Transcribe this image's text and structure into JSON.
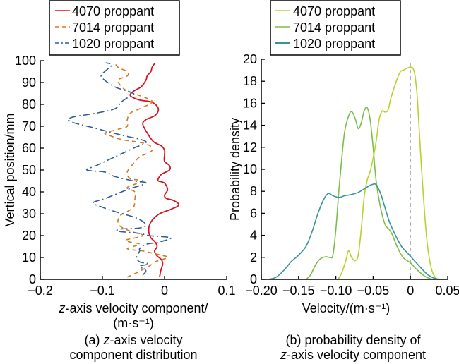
{
  "chart_data": [
    {
      "type": "line",
      "id": "left",
      "title": "",
      "caption": {
        "line1_prefix": "(a) ",
        "line1_italic": "z",
        "line1_rest": "-axis velocity",
        "line2": "component distribution"
      },
      "xlabel": {
        "line1_italic": "z",
        "line1_rest": "-axis velocity component/",
        "line2": "(m·s⁻¹)"
      },
      "ylabel": "Vertical position/mm",
      "xlim": [
        -0.2,
        0.1
      ],
      "ylim": [
        0,
        100
      ],
      "xticks": [
        -0.2,
        -0.1,
        0,
        0.1
      ],
      "xtick_labels": [
        "−0.2",
        "−0.1",
        "0",
        "0.1"
      ],
      "yticks": [
        0,
        10,
        20,
        30,
        40,
        50,
        60,
        70,
        80,
        90,
        100
      ],
      "ytick_labels": [
        "0",
        "10",
        "20",
        "30",
        "40",
        "50",
        "60",
        "70",
        "80",
        "90",
        "100"
      ],
      "grid": false,
      "legend": "top",
      "series": [
        {
          "name": "4070 proppant",
          "color": "#d7141e",
          "dash": "solid",
          "points": [
            [
              -0.008,
              1
            ],
            [
              -0.006,
              4
            ],
            [
              -0.003,
              7
            ],
            [
              -0.005,
              9
            ],
            [
              -0.013,
              11
            ],
            [
              -0.016,
              13
            ],
            [
              -0.012,
              15
            ],
            [
              -0.015,
              17
            ],
            [
              -0.022,
              19
            ],
            [
              -0.025,
              21
            ],
            [
              -0.025,
              24
            ],
            [
              -0.02,
              27
            ],
            [
              -0.008,
              30
            ],
            [
              0.01,
              32
            ],
            [
              0.023,
              34
            ],
            [
              0.015,
              36
            ],
            [
              0.003,
              37
            ],
            [
              0.0,
              38.5
            ],
            [
              0.005,
              41
            ],
            [
              0.0,
              44
            ],
            [
              -0.01,
              45
            ],
            [
              -0.01,
              46
            ],
            [
              -0.005,
              48
            ],
            [
              0.008,
              50
            ],
            [
              0.008,
              52
            ],
            [
              0.0,
              54
            ],
            [
              0.0,
              57
            ],
            [
              0.0,
              59
            ],
            [
              -0.005,
              61
            ],
            [
              -0.018,
              63
            ],
            [
              -0.028,
              67
            ],
            [
              -0.035,
              71
            ],
            [
              -0.03,
              73
            ],
            [
              -0.015,
              75
            ],
            [
              -0.01,
              78
            ],
            [
              -0.02,
              81
            ],
            [
              -0.04,
              82
            ],
            [
              -0.055,
              84
            ],
            [
              -0.05,
              86
            ],
            [
              -0.038,
              88
            ],
            [
              -0.03,
              91
            ],
            [
              -0.028,
              93
            ],
            [
              -0.022,
              95
            ],
            [
              -0.02,
              97
            ],
            [
              -0.015,
              99
            ]
          ]
        },
        {
          "name": "7014 proppant",
          "color": "#d4781e",
          "dash": "6,5",
          "points": [
            [
              -0.06,
              1
            ],
            [
              -0.045,
              3
            ],
            [
              -0.025,
              6
            ],
            [
              -0.015,
              8
            ],
            [
              0.005,
              10
            ],
            [
              -0.005,
              11
            ],
            [
              -0.02,
              12
            ],
            [
              -0.035,
              13
            ],
            [
              -0.06,
              14
            ],
            [
              -0.04,
              16
            ],
            [
              -0.055,
              17
            ],
            [
              -0.062,
              18
            ],
            [
              -0.035,
              20
            ],
            [
              -0.055,
              22
            ],
            [
              -0.07,
              24
            ],
            [
              -0.075,
              26
            ],
            [
              -0.072,
              29
            ],
            [
              -0.06,
              31
            ],
            [
              -0.05,
              33
            ],
            [
              -0.048,
              36
            ],
            [
              -0.048,
              40
            ],
            [
              -0.06,
              42
            ],
            [
              -0.035,
              45
            ],
            [
              -0.055,
              46
            ],
            [
              -0.06,
              49
            ],
            [
              -0.05,
              53
            ],
            [
              -0.04,
              56
            ],
            [
              -0.02,
              59
            ],
            [
              -0.03,
              62
            ],
            [
              -0.07,
              64
            ],
            [
              -0.09,
              66
            ],
            [
              -0.095,
              67
            ],
            [
              -0.07,
              69
            ],
            [
              -0.06,
              70
            ],
            [
              -0.06,
              73
            ],
            [
              -0.055,
              76
            ],
            [
              -0.04,
              78
            ],
            [
              -0.02,
              81
            ],
            [
              -0.03,
              83
            ],
            [
              -0.05,
              85
            ],
            [
              -0.065,
              87
            ],
            [
              -0.075,
              91
            ],
            [
              -0.06,
              93
            ],
            [
              -0.06,
              95
            ],
            [
              -0.075,
              97
            ],
            [
              -0.08,
              99
            ]
          ]
        },
        {
          "name": "1020 proppant",
          "color": "#2e5f9a",
          "dash": "10,4,2,4",
          "points": [
            [
              -0.035,
              2
            ],
            [
              -0.03,
              4
            ],
            [
              -0.04,
              6
            ],
            [
              -0.025,
              7
            ],
            [
              -0.04,
              8
            ],
            [
              -0.045,
              10
            ],
            [
              -0.04,
              13
            ],
            [
              -0.04,
              14
            ],
            [
              -0.03,
              16
            ],
            [
              -0.01,
              17
            ],
            [
              0.01,
              19
            ],
            [
              -0.025,
              20
            ],
            [
              -0.04,
              21
            ],
            [
              -0.075,
              22
            ],
            [
              -0.07,
              23
            ],
            [
              -0.04,
              23.5
            ],
            [
              -0.03,
              25
            ],
            [
              -0.045,
              28
            ],
            [
              -0.08,
              31
            ],
            [
              -0.1,
              33
            ],
            [
              -0.115,
              35
            ],
            [
              -0.095,
              37
            ],
            [
              -0.06,
              41
            ],
            [
              -0.03,
              44
            ],
            [
              -0.05,
              45
            ],
            [
              -0.08,
              47
            ],
            [
              -0.095,
              49
            ],
            [
              -0.125,
              50
            ],
            [
              -0.11,
              52
            ],
            [
              -0.08,
              56
            ],
            [
              -0.05,
              60
            ],
            [
              -0.03,
              63
            ],
            [
              -0.07,
              66
            ],
            [
              -0.11,
              69
            ],
            [
              -0.15,
              72
            ],
            [
              -0.15,
              74
            ],
            [
              -0.11,
              76
            ],
            [
              -0.08,
              78
            ],
            [
              -0.07,
              81
            ],
            [
              -0.06,
              83
            ],
            [
              -0.05,
              85
            ],
            [
              -0.08,
              88
            ],
            [
              -0.1,
              92
            ],
            [
              -0.1,
              94
            ],
            [
              -0.085,
              98
            ],
            [
              -0.095,
              99
            ]
          ]
        }
      ]
    },
    {
      "type": "line",
      "id": "right",
      "title": "",
      "caption": {
        "line1": "(b) probability density of",
        "line2_italic": "z",
        "line2_rest": "-axis velocity component"
      },
      "xlabel": "Velocity/(m·s⁻¹)",
      "ylabel": "Probability density",
      "xlim": [
        -0.2,
        0.05
      ],
      "ylim": [
        0,
        20
      ],
      "xticks": [
        -0.2,
        -0.15,
        -0.1,
        -0.05,
        0,
        0.05
      ],
      "xtick_labels": [
        "−0.20",
        "−0.15",
        "−0.10",
        "−0.05",
        "0",
        "0.05"
      ],
      "yticks": [
        0,
        2,
        4,
        6,
        8,
        10,
        12,
        14,
        16,
        18,
        20
      ],
      "ytick_labels": [
        "0",
        "2",
        "4",
        "6",
        "8",
        "10",
        "12",
        "14",
        "16",
        "18",
        "20"
      ],
      "grid": false,
      "legend": "top",
      "reference_line": {
        "x": 0,
        "color": "#aaaaaa",
        "dash": "dashed"
      },
      "series": [
        {
          "name": "4070 proppant",
          "color": "#b5d42a",
          "points": [
            [
              -0.097,
              0
            ],
            [
              -0.092,
              0.6
            ],
            [
              -0.087,
              1.6
            ],
            [
              -0.083,
              2.6
            ],
            [
              -0.079,
              2.0
            ],
            [
              -0.074,
              1.7
            ],
            [
              -0.07,
              2.2
            ],
            [
              -0.066,
              4.5
            ],
            [
              -0.062,
              7.5
            ],
            [
              -0.058,
              9.0
            ],
            [
              -0.054,
              9.8
            ],
            [
              -0.05,
              11.0
            ],
            [
              -0.046,
              12.5
            ],
            [
              -0.042,
              14.5
            ],
            [
              -0.038,
              15.3
            ],
            [
              -0.034,
              15.2
            ],
            [
              -0.03,
              15.4
            ],
            [
              -0.026,
              16.5
            ],
            [
              -0.02,
              17.8
            ],
            [
              -0.014,
              18.8
            ],
            [
              -0.01,
              19.0
            ],
            [
              0.003,
              19.2
            ],
            [
              0.008,
              17.5
            ],
            [
              0.011,
              14.5
            ],
            [
              0.015,
              10.0
            ],
            [
              0.019,
              6.0
            ],
            [
              0.023,
              3.0
            ],
            [
              0.028,
              1.0
            ],
            [
              0.033,
              0.2
            ],
            [
              0.038,
              0
            ]
          ]
        },
        {
          "name": "7014 proppant",
          "color": "#7bbf4a",
          "points": [
            [
              -0.14,
              0
            ],
            [
              -0.134,
              0.4
            ],
            [
              -0.128,
              1.2
            ],
            [
              -0.122,
              1.8
            ],
            [
              -0.114,
              2.05
            ],
            [
              -0.108,
              2.0
            ],
            [
              -0.104,
              2.2
            ],
            [
              -0.1,
              4.5
            ],
            [
              -0.096,
              8.0
            ],
            [
              -0.092,
              11.0
            ],
            [
              -0.088,
              13.5
            ],
            [
              -0.082,
              15.0
            ],
            [
              -0.078,
              15.2
            ],
            [
              -0.074,
              14.6
            ],
            [
              -0.07,
              13.7
            ],
            [
              -0.066,
              14.2
            ],
            [
              -0.062,
              15.3
            ],
            [
              -0.058,
              15.6
            ],
            [
              -0.054,
              14.5
            ],
            [
              -0.05,
              12.0
            ],
            [
              -0.046,
              9.0
            ],
            [
              -0.04,
              6.5
            ],
            [
              -0.034,
              5.0
            ],
            [
              -0.028,
              4.5
            ],
            [
              -0.024,
              4.0
            ],
            [
              -0.018,
              3.0
            ],
            [
              -0.01,
              2.0
            ],
            [
              0.0,
              1.5
            ],
            [
              0.01,
              0.8
            ],
            [
              0.02,
              0.25
            ],
            [
              0.03,
              0
            ]
          ]
        },
        {
          "name": "1020 proppant",
          "color": "#3a9494",
          "points": [
            [
              -0.19,
              0
            ],
            [
              -0.18,
              0.2
            ],
            [
              -0.17,
              0.8
            ],
            [
              -0.16,
              1.6
            ],
            [
              -0.15,
              2.2
            ],
            [
              -0.14,
              3.0
            ],
            [
              -0.132,
              4.3
            ],
            [
              -0.124,
              6.0
            ],
            [
              -0.116,
              7.3
            ],
            [
              -0.11,
              7.8
            ],
            [
              -0.104,
              7.6
            ],
            [
              -0.096,
              7.45
            ],
            [
              -0.088,
              7.6
            ],
            [
              -0.08,
              7.7
            ],
            [
              -0.07,
              7.9
            ],
            [
              -0.06,
              8.3
            ],
            [
              -0.052,
              8.6
            ],
            [
              -0.046,
              8.6
            ],
            [
              -0.04,
              7.8
            ],
            [
              -0.034,
              6.5
            ],
            [
              -0.028,
              5.2
            ],
            [
              -0.02,
              4.0
            ],
            [
              -0.012,
              3.0
            ],
            [
              -0.004,
              2.4
            ],
            [
              0.004,
              1.8
            ],
            [
              0.012,
              1.2
            ],
            [
              0.022,
              0.5
            ],
            [
              0.032,
              0.1
            ],
            [
              0.04,
              0
            ]
          ]
        }
      ]
    }
  ]
}
